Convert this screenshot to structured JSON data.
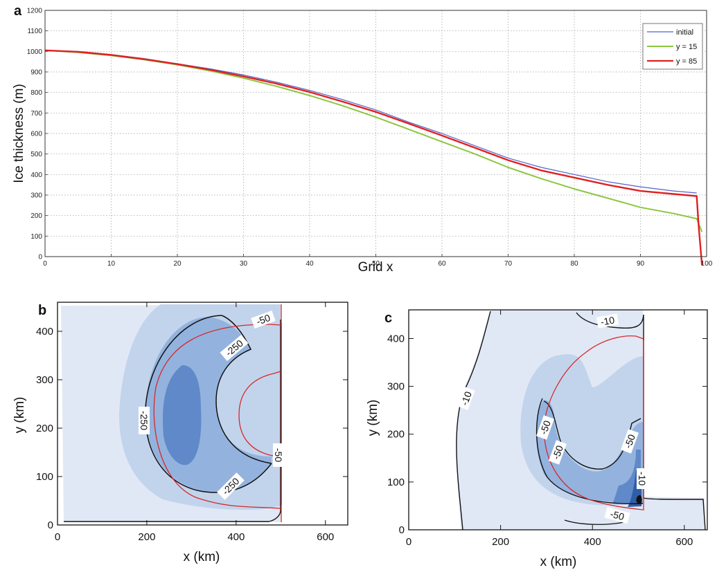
{
  "chart_data": [
    {
      "panel": "a",
      "type": "line",
      "xlabel": "Grid x",
      "ylabel": "Ice thickness (m)",
      "xlim": [
        0,
        100
      ],
      "ylim": [
        0,
        1200
      ],
      "xticks": [
        0,
        10,
        20,
        30,
        40,
        50,
        60,
        70,
        80,
        90,
        100
      ],
      "yticks": [
        0,
        100,
        200,
        300,
        400,
        500,
        600,
        700,
        800,
        900,
        1000,
        1100,
        1200
      ],
      "grid": true,
      "legend_position": "top-right",
      "series": [
        {
          "name": "initial",
          "color": "#5560c8",
          "x": [
            0,
            5,
            10,
            15,
            20,
            25,
            30,
            35,
            40,
            45,
            50,
            55,
            60,
            65,
            70,
            75,
            80,
            85,
            90,
            95,
            98.5
          ],
          "y": [
            1005,
            1000,
            985,
            965,
            940,
            915,
            885,
            850,
            810,
            765,
            715,
            655,
            600,
            540,
            480,
            435,
            400,
            365,
            340,
            320,
            310
          ]
        },
        {
          "name": "y = 15",
          "color": "#8cc63f",
          "x": [
            0,
            5,
            10,
            15,
            20,
            25,
            30,
            35,
            40,
            45,
            50,
            55,
            60,
            65,
            70,
            75,
            80,
            85,
            90,
            95,
            98.5,
            99.3
          ],
          "y": [
            1005,
            995,
            980,
            960,
            935,
            905,
            870,
            830,
            785,
            735,
            680,
            620,
            560,
            500,
            435,
            380,
            330,
            285,
            240,
            210,
            185,
            120
          ]
        },
        {
          "name": "y = 85",
          "color": "#e02020",
          "x": [
            0,
            5,
            10,
            15,
            20,
            25,
            30,
            35,
            40,
            45,
            50,
            55,
            60,
            65,
            70,
            75,
            80,
            85,
            90,
            95,
            98.5,
            98.8,
            99.3
          ],
          "y": [
            1005,
            998,
            983,
            962,
            938,
            910,
            878,
            843,
            802,
            755,
            705,
            648,
            590,
            530,
            470,
            420,
            385,
            350,
            320,
            305,
            295,
            150,
            -100
          ]
        }
      ]
    },
    {
      "panel": "b",
      "type": "contour",
      "xlabel": "x (km)",
      "ylabel": "y (km)",
      "xlim": [
        0,
        650
      ],
      "ylim": [
        0,
        460
      ],
      "xticks": [
        0,
        200,
        400,
        600
      ],
      "yticks": [
        0,
        100,
        200,
        300,
        400
      ],
      "contour_labels": [
        "-50",
        "-250",
        "-250",
        "-250",
        "-50"
      ]
    },
    {
      "panel": "c",
      "type": "contour",
      "xlabel": "x (km)",
      "ylabel": "y (km)",
      "xlim": [
        0,
        650
      ],
      "ylim": [
        0,
        460
      ],
      "xticks": [
        0,
        200,
        400,
        600
      ],
      "yticks": [
        0,
        100,
        200,
        300,
        400
      ],
      "contour_labels": [
        "-10",
        "-10",
        "-50",
        "-50",
        "-50",
        "-10",
        "-50"
      ]
    }
  ],
  "colors": {
    "contour_lightest": "#e1e8f5",
    "contour_light": "#c2d4ec",
    "contour_mid": "#93b3de",
    "contour_dark": "#5f89c8",
    "contour_darkest": "#2f5ea8",
    "grounding_line": "#d62828"
  }
}
